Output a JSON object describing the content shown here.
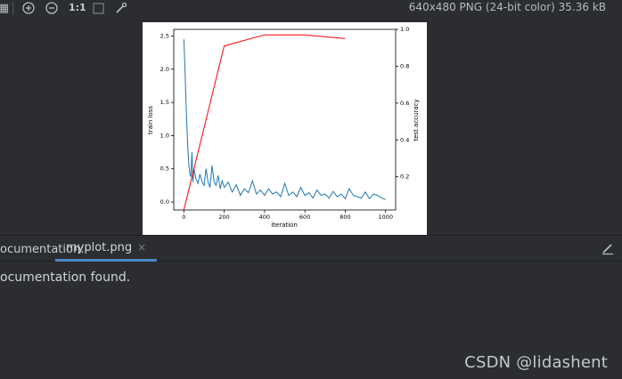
{
  "toolbar": {
    "icons": [
      "grid-icon",
      "zoom-in-icon",
      "zoom-out-icon",
      "actual-size-icon",
      "fit-icon",
      "color-picker-icon"
    ],
    "zoom_label": "1:1",
    "image_info": "640x480 PNG (24-bit color) 35.36 kB"
  },
  "bottom_panel": {
    "tab_prefix": "ocumentation:",
    "tab_label": "myplot.png",
    "tab_close": "×",
    "message": "ocumentation found."
  },
  "watermark": "CSDN @lidashent",
  "chart_data": {
    "type": "line",
    "xlabel": "iteration",
    "ylabel_left": "train loss",
    "ylabel_right": "test accuracy",
    "x_ticks": [
      "0",
      "200",
      "400",
      "600",
      "800",
      "1000"
    ],
    "y_left_ticks": [
      "0.0",
      "0.5",
      "1.0",
      "1.5",
      "2.0",
      "2.5"
    ],
    "y_right_ticks": [
      "0.2",
      "0.4",
      "0.6",
      "0.8",
      "1.0"
    ],
    "xlim": [
      -50,
      1050
    ],
    "ylim_left": [
      -0.12,
      2.6
    ],
    "ylim_right": [
      0.02,
      1.0
    ],
    "series": [
      {
        "color": "#1f77b4",
        "x": [
          0,
          5,
          10,
          15,
          20,
          25,
          30,
          35,
          40,
          45,
          50,
          60,
          70,
          80,
          90,
          100,
          110,
          120,
          130,
          140,
          150,
          160,
          170,
          180,
          190,
          200,
          220,
          240,
          260,
          280,
          300,
          320,
          340,
          360,
          380,
          400,
          420,
          440,
          460,
          480,
          500,
          520,
          540,
          560,
          580,
          600,
          620,
          640,
          660,
          680,
          700,
          720,
          740,
          760,
          780,
          800,
          820,
          840,
          860,
          880,
          900,
          920,
          940,
          960,
          980,
          1000
        ],
        "y": [
          2.45,
          2.05,
          1.55,
          1.15,
          0.8,
          0.55,
          0.42,
          0.38,
          0.75,
          0.3,
          0.5,
          0.35,
          0.28,
          0.42,
          0.3,
          0.25,
          0.5,
          0.3,
          0.22,
          0.55,
          0.3,
          0.25,
          0.4,
          0.2,
          0.32,
          0.22,
          0.3,
          0.15,
          0.26,
          0.1,
          0.2,
          0.14,
          0.32,
          0.12,
          0.18,
          0.1,
          0.2,
          0.12,
          0.15,
          0.08,
          0.28,
          0.1,
          0.15,
          0.08,
          0.22,
          0.1,
          0.14,
          0.06,
          0.18,
          0.1,
          0.12,
          0.06,
          0.16,
          0.08,
          0.12,
          0.05,
          0.2,
          0.1,
          0.08,
          0.06,
          0.15,
          0.05,
          0.12,
          0.1,
          0.06,
          0.04
        ]
      },
      {
        "color": "#ff0000",
        "x": [
          0,
          200,
          400,
          600,
          800
        ],
        "y": [
          0.02,
          0.91,
          0.97,
          0.97,
          0.95
        ]
      }
    ]
  }
}
